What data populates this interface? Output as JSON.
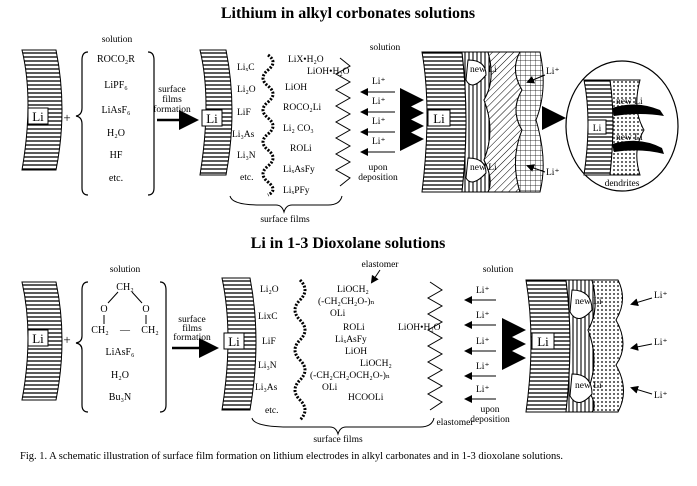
{
  "panel1": {
    "title": "Lithium in alkyl corbonates solutions",
    "solution_label": "solution",
    "solution_right_label": "solution",
    "electrode_label": "Li",
    "plus": "+",
    "solution_items": [
      "ROCO₂R",
      "LiPF₆",
      "LiAsF₆",
      "H₂O",
      "HF",
      "etc."
    ],
    "arrow_label": [
      "surface",
      "films",
      "formation"
    ],
    "film_inner": [
      "LiₓC",
      "Li₂O",
      "LiF",
      "Li₃As",
      "Li₃N",
      "etc."
    ],
    "film_outer": [
      "LiX•H₂O",
      "LiOH•H₂O",
      "LiOH",
      "ROCO₂Li",
      "Li₂ CO₃",
      "ROLi",
      "LiₓAsFy",
      "LiₓPFy"
    ],
    "li_ion": "Li⁺",
    "upon_deposition": [
      "upon",
      "deposition"
    ],
    "new_li": "new Li",
    "dendrites": "dendrites",
    "surface_films": "surface films"
  },
  "panel2": {
    "title": "Li in 1-3 Dioxolane solutions",
    "solution_label": "solution",
    "solution_right_label": "solution",
    "elastomer_top": "elastomer",
    "elastomer_bottom": "elastomer",
    "electrode_label": "Li",
    "plus": "+",
    "ring_top": "CH₂",
    "ring_o_left": "O",
    "ring_o_right": "O",
    "ring_bottom_left": "CH₂",
    "ring_dash": "—",
    "ring_bottom_right": "CH₂",
    "solution_items": [
      "LiAsF₆",
      "H₂O",
      "Bu₃N"
    ],
    "arrow_label": [
      "surface",
      "films",
      "formation"
    ],
    "film_inner": [
      "Li₂O",
      "LixC",
      "LiF",
      "Li₃N",
      "Li₃As",
      "etc."
    ],
    "film_outer": [
      "LiOCH₂",
      "(-CH₂CH₂O-)ₙ",
      "OLi",
      "ROLi",
      "LiOH•H₂O",
      "LiₓAsFy",
      "LiOH",
      "LiOCH₂",
      "(-CH₂CH₂OCH₂O-)ₙ",
      "OLi",
      "HCOOLi"
    ],
    "li_ion": "Li⁺",
    "upon_deposition": [
      "upon",
      "deposition"
    ],
    "new_li": "new Li",
    "surface_films": "surface films"
  },
  "caption": "Fig. 1. A schematic illustration of surface film formation on lithium electrodes in alkyl carbonates and in 1-3 dioxolane solutions."
}
